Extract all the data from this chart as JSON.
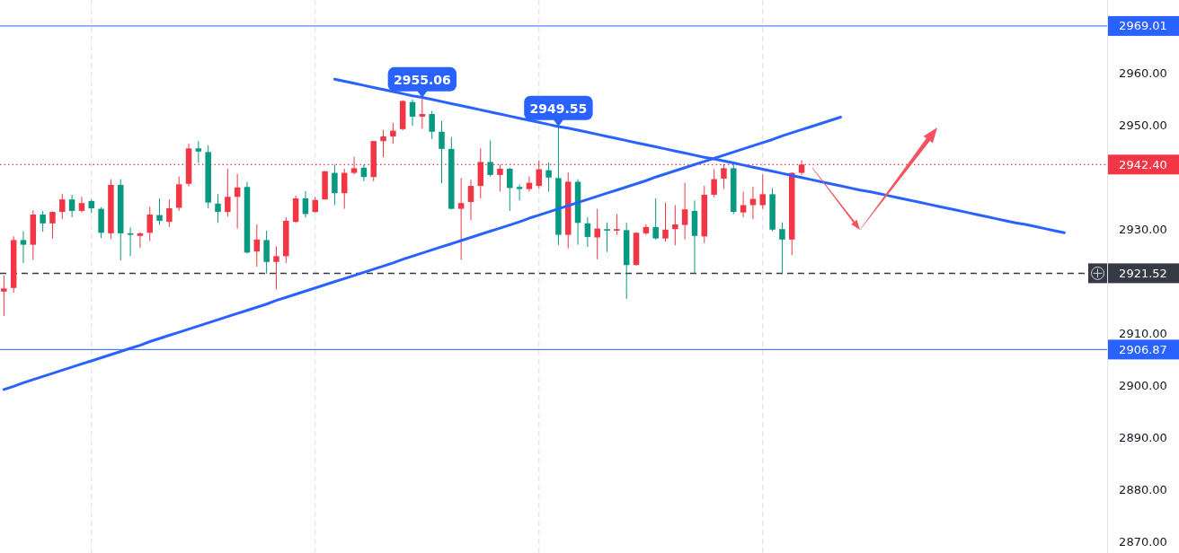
{
  "chart_data": {
    "type": "candlestick",
    "categories": [
      null,
      null,
      null,
      null,
      null,
      null,
      null,
      null,
      null,
      null,
      null,
      null,
      null,
      null,
      null,
      null,
      null,
      null,
      null,
      null,
      null,
      null,
      null,
      null,
      null,
      null,
      null,
      null,
      null,
      null,
      null,
      null,
      null,
      null,
      null,
      null,
      null,
      null,
      null,
      null,
      null,
      null,
      null,
      null,
      null,
      null,
      null,
      null,
      null,
      null,
      null,
      null,
      null,
      null,
      null,
      null,
      null,
      null,
      null,
      null,
      null,
      null,
      null,
      null,
      null,
      null,
      null,
      null,
      null,
      null,
      null,
      null,
      null,
      null,
      null,
      null,
      null,
      null,
      null,
      null,
      null,
      null,
      null,
      null,
      null,
      null,
      null,
      null,
      null,
      null,
      null,
      null,
      null,
      null,
      null,
      null,
      null,
      null,
      null,
      null,
      null,
      null,
      null,
      null,
      null,
      null,
      null,
      null,
      null,
      null,
      null,
      null,
      null,
      null
    ],
    "ohlc": [
      [
        2918.0,
        2921.1,
        2913.3,
        2918.6
      ],
      [
        2918.7,
        2928.6,
        2917.8,
        2927.9
      ],
      [
        2927.9,
        2929.6,
        2923.5,
        2927.0
      ],
      [
        2927.0,
        2933.6,
        2924.1,
        2932.8
      ],
      [
        2932.8,
        2933.5,
        2929.5,
        2931.1
      ],
      [
        2931.1,
        2933.4,
        2928.2,
        2933.3
      ],
      [
        2933.3,
        2936.8,
        2931.9,
        2935.7
      ],
      [
        2935.7,
        2936.6,
        2932.3,
        2933.5
      ],
      [
        2933.5,
        2936.2,
        2933.2,
        2935.0
      ],
      [
        2935.4,
        2935.7,
        2933.1,
        2934.0
      ],
      [
        2933.9,
        2934.2,
        2928.3,
        2929.3
      ],
      [
        2929.2,
        2939.6,
        2928.1,
        2938.5
      ],
      [
        2938.5,
        2939.6,
        2924.0,
        2929.2
      ],
      [
        2929.2,
        2930.3,
        2924.8,
        2928.9
      ],
      [
        2928.7,
        2929.4,
        2926.4,
        2929.2
      ],
      [
        2929.3,
        2934.3,
        2927.7,
        2932.8
      ],
      [
        2932.7,
        2935.9,
        2930.8,
        2931.6
      ],
      [
        2931.4,
        2935.7,
        2930.4,
        2934.0
      ],
      [
        2934.1,
        2940.1,
        2933.5,
        2938.6
      ],
      [
        2938.7,
        2946.4,
        2938.2,
        2945.5
      ],
      [
        2945.5,
        2946.9,
        2942.7,
        2944.9
      ],
      [
        2944.8,
        2946.1,
        2934.0,
        2935.1
      ],
      [
        2934.9,
        2936.7,
        2931.2,
        2933.3
      ],
      [
        2933.3,
        2941.6,
        2932.4,
        2936.2
      ],
      [
        2936.2,
        2940.6,
        2930.1,
        2938.0
      ],
      [
        2938.1,
        2939.1,
        2925.3,
        2925.5
      ],
      [
        2925.7,
        2930.9,
        2922.8,
        2928.0
      ],
      [
        2927.9,
        2929.7,
        2921.4,
        2923.7
      ],
      [
        2923.7,
        2926.7,
        2918.4,
        2924.8
      ],
      [
        2924.8,
        2932.3,
        2923.5,
        2931.6
      ],
      [
        2931.4,
        2936.4,
        2931.2,
        2935.9
      ],
      [
        2935.9,
        2937.3,
        2932.2,
        2932.9
      ],
      [
        2933.3,
        2936.2,
        2933.1,
        2935.6
      ],
      [
        2935.7,
        2941.2,
        2935.7,
        2941.1
      ],
      [
        2940.8,
        2942.4,
        2934.6,
        2936.9
      ],
      [
        2936.9,
        2941.6,
        2933.9,
        2940.8
      ],
      [
        2940.8,
        2943.9,
        2940.5,
        2941.7
      ],
      [
        2941.8,
        2942.4,
        2939.2,
        2940.0
      ],
      [
        2940.0,
        2947.0,
        2939.2,
        2946.9
      ],
      [
        2946.9,
        2949.0,
        2943.8,
        2947.8
      ],
      [
        2947.8,
        2950.4,
        2946.4,
        2948.9
      ],
      [
        2949.2,
        2954.8,
        2949.0,
        2954.6
      ],
      [
        2954.4,
        2954.9,
        2949.8,
        2951.6
      ],
      [
        2951.6,
        2955.06,
        2949.3,
        2952.1
      ],
      [
        2952.1,
        2952.7,
        2947.3,
        2948.7
      ],
      [
        2948.7,
        2950.8,
        2938.8,
        2945.4
      ],
      [
        2945.4,
        2947.7,
        2933.8,
        2933.9
      ],
      [
        2933.9,
        2939.8,
        2924.1,
        2935.0
      ],
      [
        2935.2,
        2939.5,
        2931.7,
        2938.3
      ],
      [
        2938.3,
        2945.5,
        2935.9,
        2942.9
      ],
      [
        2942.9,
        2947.0,
        2940.1,
        2940.4
      ],
      [
        2940.4,
        2942.4,
        2937.2,
        2941.6
      ],
      [
        2941.6,
        2941.8,
        2933.5,
        2937.9
      ],
      [
        2938.1,
        2938.6,
        2935.5,
        2937.7
      ],
      [
        2937.7,
        2940.1,
        2937.2,
        2938.9
      ],
      [
        2938.3,
        2943.2,
        2937.8,
        2941.5
      ],
      [
        2941.3,
        2942.8,
        2937.2,
        2939.9
      ],
      [
        2939.8,
        2949.55,
        2926.9,
        2928.9
      ],
      [
        2928.9,
        2940.9,
        2926.3,
        2939.1
      ],
      [
        2939.1,
        2939.6,
        2927.0,
        2931.2
      ],
      [
        2931.1,
        2932.3,
        2926.6,
        2928.5
      ],
      [
        2928.4,
        2933.9,
        2924.2,
        2930.1
      ],
      [
        2930.0,
        2931.3,
        2925.6,
        2929.7
      ],
      [
        2929.7,
        2932.9,
        2928.9,
        2930.0
      ],
      [
        2929.8,
        2931.2,
        2916.6,
        2923.1
      ],
      [
        2923.1,
        2929.4,
        2923.0,
        2929.3
      ],
      [
        2929.2,
        2930.9,
        2928.9,
        2930.4
      ],
      [
        2930.4,
        2935.9,
        2928.0,
        2928.2
      ],
      [
        2928.2,
        2935.1,
        2927.6,
        2929.9
      ],
      [
        2930.0,
        2934.6,
        2926.9,
        2930.9
      ],
      [
        2930.8,
        2938.9,
        2928.0,
        2933.8
      ],
      [
        2933.5,
        2935.5,
        2921.5,
        2928.7
      ],
      [
        2928.6,
        2938.3,
        2927.3,
        2936.6
      ],
      [
        2936.6,
        2941.5,
        2936.1,
        2939.6
      ],
      [
        2939.7,
        2942.5,
        2937.7,
        2941.7
      ],
      [
        2941.7,
        2942.4,
        2932.9,
        2933.3
      ],
      [
        2933.2,
        2937.2,
        2932.3,
        2934.6
      ],
      [
        2934.6,
        2938.1,
        2931.9,
        2935.8
      ],
      [
        2934.6,
        2940.5,
        2933.9,
        2936.7
      ],
      [
        2936.7,
        2937.9,
        2929.6,
        2929.9
      ],
      [
        2930.0,
        2931.3,
        2921.5,
        2928.0
      ],
      [
        2928.0,
        2940.9,
        2925.0,
        2940.8
      ],
      [
        2940.8,
        2943.2,
        2940.4,
        2942.4
      ],
      null,
      null,
      null,
      null,
      null,
      null,
      null,
      null,
      null,
      null,
      null,
      null,
      null,
      null,
      null,
      null,
      null,
      null,
      null,
      null,
      null,
      null,
      null,
      null,
      null,
      null,
      null,
      null,
      null,
      null,
      null
    ],
    "colors": [
      "#f23645",
      "#f23645",
      "#089981",
      "#f23645",
      "#089981",
      "#f23645",
      "#f23645",
      "#089981",
      "#f23645",
      "#089981",
      "#089981",
      "#f23645",
      "#089981",
      "#089981",
      "#f23645",
      "#f23645",
      "#089981",
      "#f23645",
      "#f23645",
      "#f23645",
      "#089981",
      "#089981",
      "#089981",
      "#f23645",
      "#f23645",
      "#089981",
      "#f23645",
      "#089981",
      "#f23645",
      "#f23645",
      "#f23645",
      "#089981",
      "#f23645",
      "#f23645",
      "#089981",
      "#f23645",
      "#f23645",
      "#089981",
      "#f23645",
      "#f23645",
      "#f23645",
      "#f23645",
      "#089981",
      "#f23645",
      "#089981",
      "#089981",
      "#089981",
      "#f23645",
      "#f23645",
      "#f23645",
      "#089981",
      "#f23645",
      "#089981",
      "#089981",
      "#f23645",
      "#f23645",
      "#089981",
      "#089981",
      "#f23645",
      "#089981",
      "#089981",
      "#f23645",
      "#089981",
      "#f23645",
      "#089981",
      "#f23645",
      "#f23645",
      "#089981",
      "#f23645",
      "#f23645",
      "#f23645",
      "#089981",
      "#f23645",
      "#f23645",
      "#f23645",
      "#089981",
      "#f23645",
      "#f23645",
      "#f23645",
      "#089981",
      "#089981",
      "#f23645",
      "#f23645",
      null,
      null,
      null,
      null,
      null,
      null,
      null,
      null,
      null,
      null,
      null,
      null,
      null,
      null,
      null,
      null,
      null,
      null,
      null,
      null,
      null,
      null,
      null,
      null,
      null,
      null,
      null,
      null,
      null,
      null,
      null
    ],
    "series": [
      {
        "type": "line",
        "color": "#2962ff",
        "values": [
          null,
          null,
          null,
          null,
          null,
          null,
          null,
          null,
          null,
          null,
          null,
          null,
          null,
          null,
          null,
          null,
          null,
          null,
          null,
          null,
          null,
          null,
          null,
          null,
          null,
          null,
          null,
          null,
          null,
          null,
          null,
          null,
          null,
          null,
          2958.8,
          2958.4,
          2958.0,
          2957.6,
          2957.2,
          2956.8,
          2956.4,
          2956.0,
          2955.6,
          2955.3,
          2954.9,
          2954.5,
          2954.1,
          2953.7,
          2953.3,
          2952.9,
          2952.5,
          2952.1,
          2951.7,
          2951.3,
          2950.9,
          2950.5,
          2950.1,
          2949.7,
          2949.4,
          2949.0,
          2948.6,
          2948.2,
          2947.8,
          2947.4,
          2947.0,
          2946.6,
          2946.2,
          2945.8,
          2945.4,
          2945.0,
          2944.6,
          2944.2,
          2943.8,
          2943.5,
          2943.1,
          2942.7,
          2942.3,
          2941.9,
          2941.5,
          2941.1,
          2940.7,
          2940.3,
          2939.9,
          2939.5,
          2939.1,
          2938.7,
          2938.3,
          2937.9,
          2937.5,
          2937.2,
          2936.8,
          2936.4,
          2936.0,
          2935.6,
          2935.2,
          2934.8,
          2934.4,
          2934.0,
          2933.6,
          2933.2,
          2932.8,
          2932.4,
          2932.0,
          2931.6,
          2931.2,
          2930.9,
          2930.5,
          2930.1,
          2929.7,
          2929.3,
          null,
          null,
          null,
          null
        ]
      },
      {
        "type": "line",
        "color": "#2962ff",
        "values": [
          2899.2,
          2899.8,
          2900.5,
          2901.1,
          2901.7,
          2902.3,
          2902.9,
          2903.5,
          2904.1,
          2904.7,
          2905.3,
          2905.9,
          2906.5,
          2907.1,
          2907.7,
          2908.4,
          2909.0,
          2909.6,
          2910.2,
          2910.8,
          2911.4,
          2912.0,
          2912.6,
          2913.2,
          2913.8,
          2914.4,
          2915.0,
          2915.6,
          2916.3,
          2916.9,
          2917.5,
          2918.1,
          2918.7,
          2919.3,
          2919.9,
          2920.5,
          2921.1,
          2921.7,
          2922.3,
          2922.9,
          2923.5,
          2924.2,
          2924.8,
          2925.4,
          2926.0,
          2926.6,
          2927.2,
          2927.8,
          2928.4,
          2929.0,
          2929.6,
          2930.2,
          2930.8,
          2931.4,
          2932.1,
          2932.7,
          2933.3,
          2933.9,
          2934.5,
          2935.1,
          2935.7,
          2936.3,
          2936.9,
          2937.5,
          2938.1,
          2938.7,
          2939.3,
          2940.0,
          2940.6,
          2941.2,
          2941.8,
          2942.4,
          2943.0,
          2943.6,
          2944.2,
          2944.8,
          2945.4,
          2946.0,
          2946.6,
          2947.2,
          2947.9,
          2948.5,
          2949.1,
          2949.7,
          2950.3,
          2950.9,
          2951.5,
          null,
          null,
          null,
          null,
          null,
          null,
          null,
          null,
          null,
          null,
          null,
          null,
          null,
          null,
          null,
          null,
          null,
          null,
          null,
          null,
          null,
          null,
          null,
          null,
          null,
          null,
          null
        ]
      }
    ],
    "ylim": [
      2867.8,
      2974.0
    ],
    "yticks": [
      {
        "value": 2870,
        "label": "2870.00"
      },
      {
        "value": 2880,
        "label": "2880.00"
      },
      {
        "value": 2890,
        "label": "2890.00"
      },
      {
        "value": 2900,
        "label": "2900.00"
      },
      {
        "value": 2910,
        "label": "2910.00"
      },
      {
        "value": 2930,
        "label": "2930.00"
      },
      {
        "value": 2950,
        "label": "2950.00"
      },
      {
        "value": 2960,
        "label": "2960.00"
      }
    ],
    "grid": "x",
    "ref_lines": [
      {
        "axis": "y",
        "value": 2969.01,
        "label": "2969.01",
        "color": "#2962ff",
        "line_style": "solid"
      },
      {
        "axis": "y",
        "value": 2942.4,
        "label": "2942.40",
        "color": "#f23645",
        "line_style": "dotted"
      },
      {
        "axis": "y",
        "value": 2921.52,
        "label": "2921.52",
        "color": "#363a45",
        "line_style": "dashed"
      },
      {
        "axis": "y",
        "value": 2906.87,
        "label": "2906.87",
        "color": "#2962ff",
        "line_style": "solid"
      }
    ],
    "annotations": [
      {
        "text": "2955.06",
        "y": 2955.06
      },
      {
        "text": "2949.55",
        "y": 2949.55
      }
    ]
  }
}
